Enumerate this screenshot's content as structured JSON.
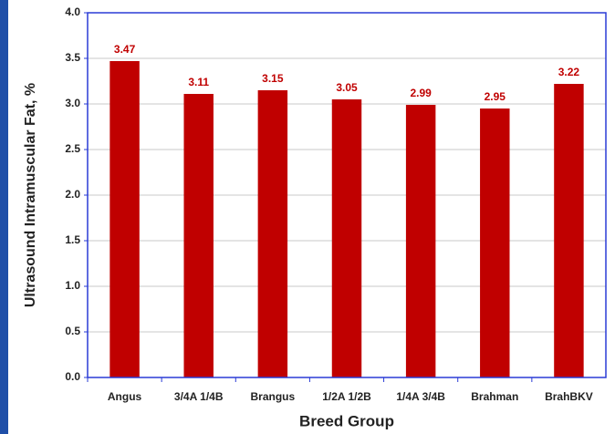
{
  "chart_data": {
    "type": "bar",
    "xlabel": "Breed Group",
    "ylabel": "Ultrasound Intramuscular Fat, %",
    "categories": [
      "Angus",
      "3/4A 1/4B",
      "Brangus",
      "1/2A 1/2B",
      "1/4A 3/4B",
      "Brahman",
      "BrahBKV"
    ],
    "values": [
      3.47,
      3.11,
      3.15,
      3.05,
      2.99,
      2.95,
      3.22
    ],
    "color": "#c00000",
    "ylim": [
      0,
      4
    ],
    "yticks": [
      {
        "value": 0,
        "label": "0.0"
      },
      0.5,
      {
        "value": 1,
        "label": "1.0"
      },
      1.5,
      {
        "value": 2,
        "label": "2.0"
      },
      2.5,
      {
        "value": 3,
        "label": "3.0"
      },
      3.5,
      {
        "value": 4,
        "label": "4.0"
      }
    ],
    "grid": true
  }
}
